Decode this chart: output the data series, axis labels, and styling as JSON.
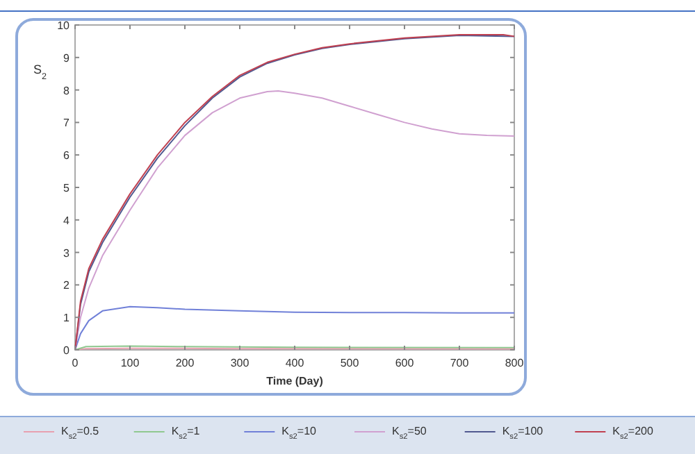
{
  "chart_data": {
    "type": "line",
    "xlabel": "Time (Day)",
    "ylabel": "S$_{2}$",
    "xlim": [
      0,
      800
    ],
    "ylim": [
      0,
      10
    ],
    "xticks": [
      0,
      100,
      200,
      300,
      400,
      500,
      600,
      700,
      800
    ],
    "yticks": [
      0,
      1,
      2,
      3,
      4,
      5,
      6,
      7,
      8,
      9,
      10
    ],
    "grid": false,
    "legend": "bottom",
    "marker": "none",
    "line_style": "solid",
    "series": [
      {
        "name": "K$_{s2}$=0.5",
        "color": "#e8a0b0",
        "x": [
          0,
          20,
          100,
          300,
          800
        ],
        "values": [
          0,
          0.04,
          0.05,
          0.04,
          0.03
        ]
      },
      {
        "name": "K$_{s2}$=1",
        "color": "#90c890",
        "x": [
          0,
          20,
          100,
          200,
          400,
          800
        ],
        "values": [
          0,
          0.1,
          0.12,
          0.1,
          0.08,
          0.07
        ]
      },
      {
        "name": "K$_{s2}$=10",
        "color": "#7080d8",
        "x": [
          0,
          10,
          25,
          50,
          100,
          150,
          200,
          300,
          400,
          500,
          600,
          700,
          800
        ],
        "values": [
          0,
          0.5,
          0.9,
          1.2,
          1.33,
          1.3,
          1.25,
          1.2,
          1.16,
          1.15,
          1.15,
          1.14,
          1.14
        ]
      },
      {
        "name": "K$_{s2}$=50",
        "color": "#d0a0d0",
        "x": [
          0,
          10,
          25,
          50,
          100,
          150,
          200,
          250,
          300,
          350,
          370,
          400,
          450,
          500,
          550,
          600,
          650,
          700,
          750,
          800
        ],
        "values": [
          0,
          1.0,
          1.9,
          2.9,
          4.3,
          5.6,
          6.6,
          7.3,
          7.75,
          7.95,
          7.97,
          7.9,
          7.75,
          7.5,
          7.25,
          7.0,
          6.8,
          6.65,
          6.6,
          6.58
        ]
      },
      {
        "name": "K$_{s2}$=100",
        "color": "#505890",
        "x": [
          0,
          10,
          25,
          50,
          100,
          150,
          200,
          250,
          300,
          350,
          400,
          450,
          500,
          600,
          700,
          800
        ],
        "values": [
          0,
          1.4,
          2.4,
          3.3,
          4.7,
          5.9,
          6.9,
          7.75,
          8.4,
          8.82,
          9.08,
          9.28,
          9.4,
          9.58,
          9.68,
          9.65
        ]
      },
      {
        "name": "K$_{s2}$=200",
        "color": "#c04050",
        "x": [
          0,
          10,
          25,
          50,
          100,
          150,
          200,
          250,
          300,
          350,
          400,
          450,
          500,
          600,
          700,
          780,
          800
        ],
        "values": [
          0,
          1.5,
          2.5,
          3.4,
          4.8,
          6.0,
          7.0,
          7.8,
          8.45,
          8.85,
          9.1,
          9.3,
          9.42,
          9.6,
          9.7,
          9.7,
          9.65
        ]
      }
    ]
  }
}
